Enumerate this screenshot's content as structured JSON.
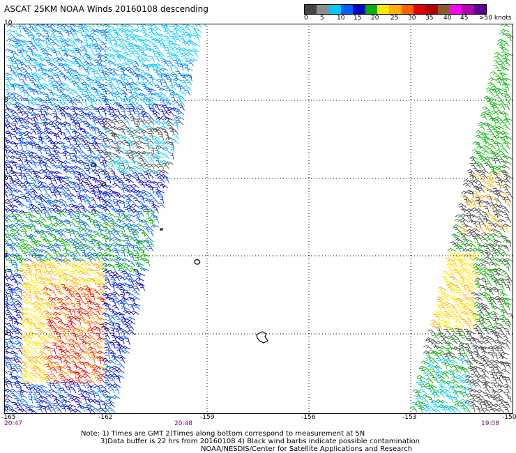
{
  "title": "ASCAT 25KM NOAA Winds 20160108 descending",
  "scale": {
    "colors": [
      "#444444",
      "#8c8c8c",
      "#00c8ff",
      "#0060ff",
      "#0000c0",
      "#00b000",
      "#ffe800",
      "#ffb000",
      "#ff6000",
      "#e00000",
      "#b00000",
      "#8b5a2b",
      "#ff00ff",
      "#b000b0",
      "#5a0090"
    ],
    "labels": [
      "0",
      "5",
      "10",
      "15",
      "20",
      "25",
      "30",
      "35",
      "40",
      "45",
      ">50 knots"
    ]
  },
  "lat_labels": [
    "10",
    "8",
    "6",
    "4",
    "2",
    "0"
  ],
  "lon_labels": [
    "-165",
    "-162",
    "-159",
    "-156",
    "-153",
    "-150"
  ],
  "time_labels": [
    "20:47",
    "20:48",
    "19:08"
  ],
  "notes": [
    "Note: 1) Times are GMT 2)Times along bottom correspond to measurement at 5N",
    "3)Data buffer is 22 hrs from 20160108 4) Black wind barbs indicate possible contamination",
    "NOAA/NESDIS/Center for Satellite Applications and Research"
  ]
}
